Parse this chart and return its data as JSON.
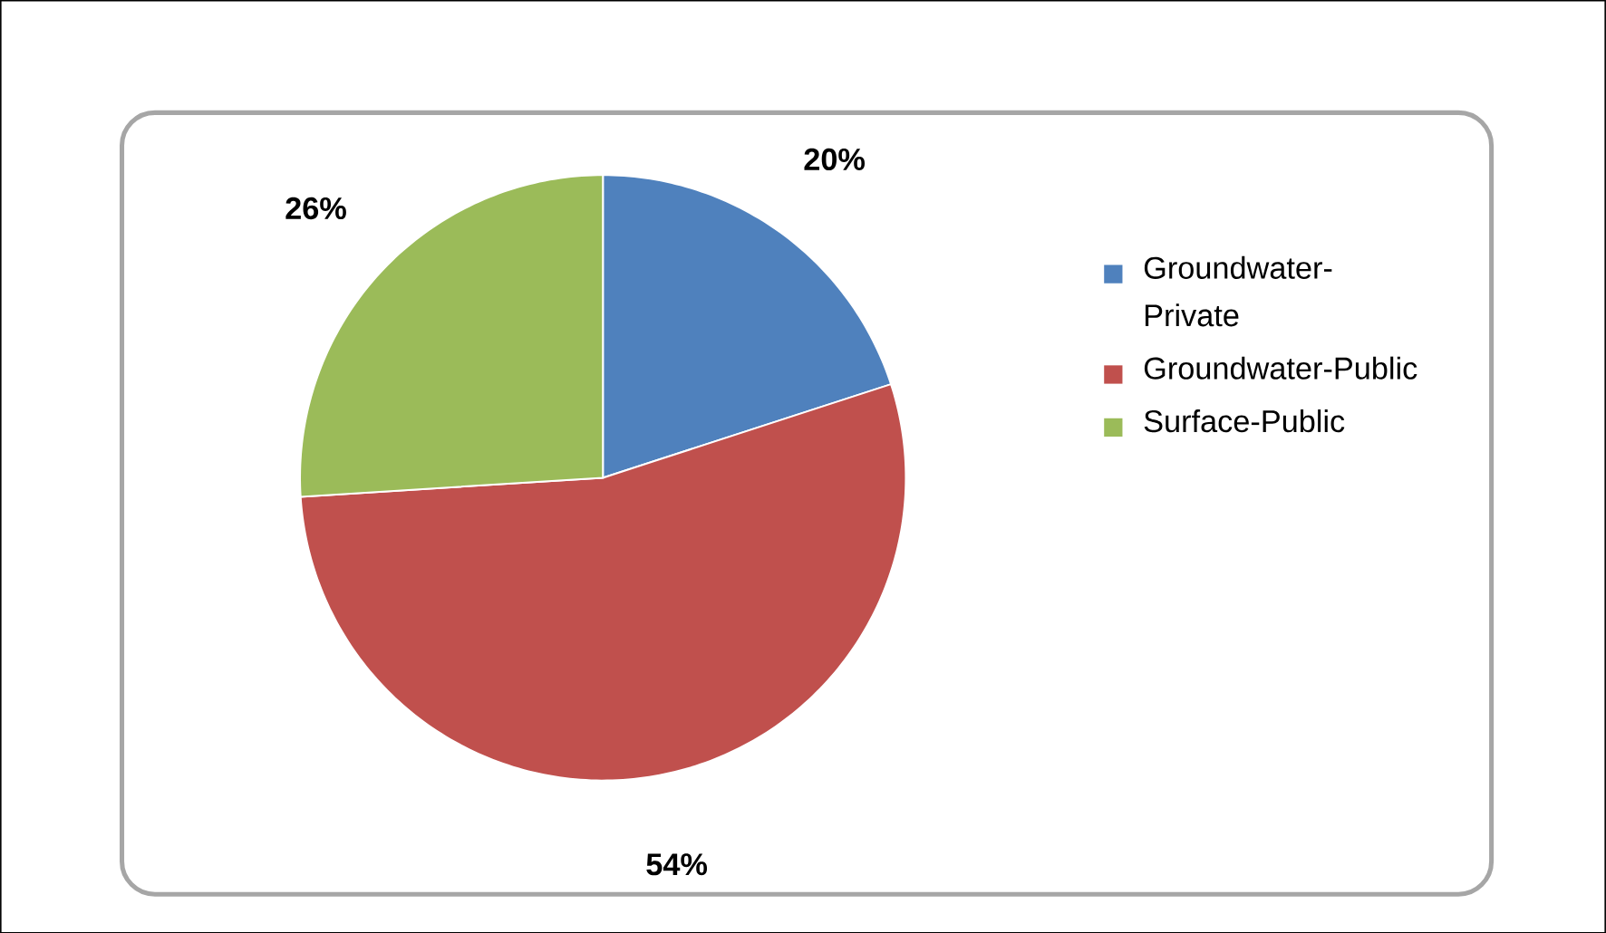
{
  "chart_data": {
    "type": "pie",
    "categories": [
      "Groundwater-Private",
      "Groundwater-Public",
      "Surface-Public"
    ],
    "values": [
      20,
      54,
      26
    ],
    "colors": [
      "#4f81bd",
      "#c0504d",
      "#9bbb59"
    ],
    "value_labels": [
      "20%",
      "54%",
      "26%"
    ],
    "legend": "right"
  }
}
